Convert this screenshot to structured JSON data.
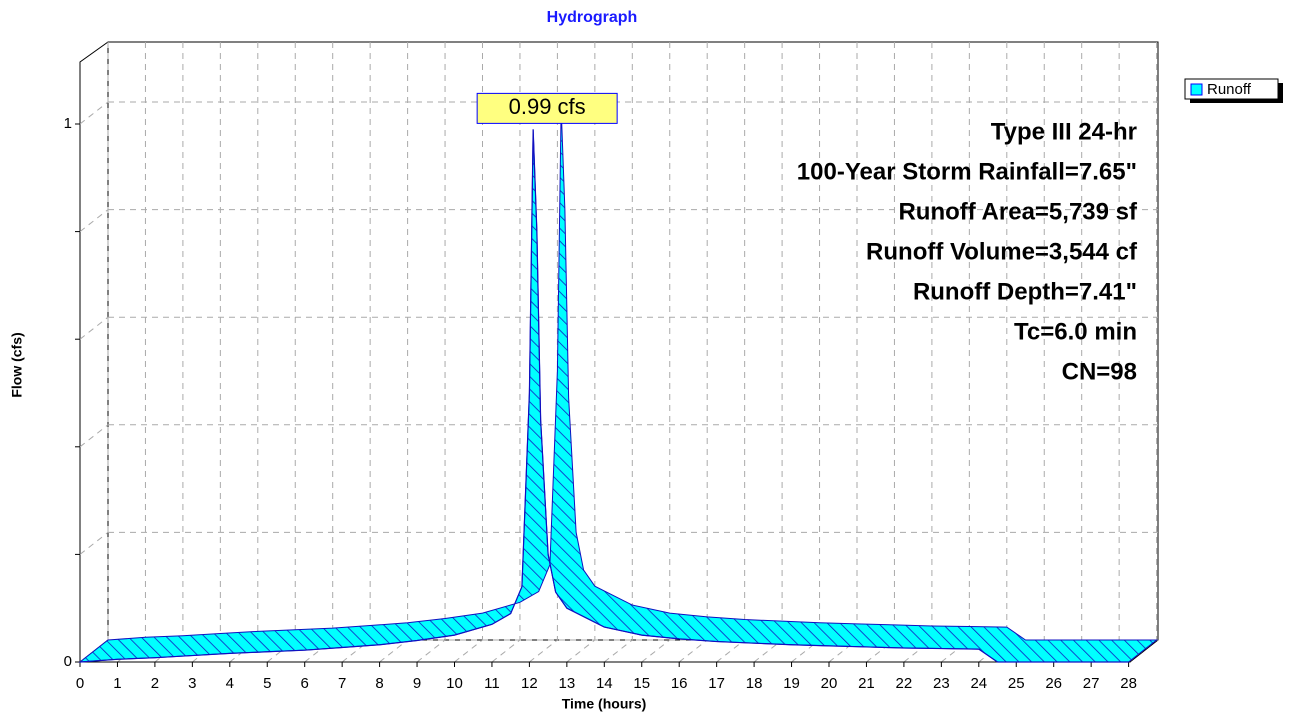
{
  "chart_data": {
    "type": "hydrograph",
    "title": "Hydrograph",
    "xlabel": "Time  (hours)",
    "ylabel": "Flow  (cfs)",
    "x": [
      0,
      1,
      2,
      3,
      4,
      5,
      6,
      7,
      8,
      9,
      10,
      11,
      11.5,
      11.8,
      12.0,
      12.1,
      12.2,
      12.3,
      12.5,
      12.7,
      13,
      14,
      15,
      16,
      17,
      18,
      19,
      20,
      21,
      22,
      23,
      24,
      24.5,
      25,
      26,
      27,
      28
    ],
    "series": [
      {
        "name": "Runoff",
        "color": "#00ffff",
        "values": [
          0,
          0.005,
          0.008,
          0.012,
          0.016,
          0.019,
          0.022,
          0.027,
          0.032,
          0.04,
          0.05,
          0.07,
          0.09,
          0.14,
          0.5,
          0.99,
          0.8,
          0.45,
          0.2,
          0.13,
          0.1,
          0.065,
          0.05,
          0.043,
          0.038,
          0.035,
          0.032,
          0.03,
          0.028,
          0.026,
          0.025,
          0.024,
          0,
          0,
          0,
          0,
          0
        ]
      }
    ],
    "peak": {
      "x": 12.1,
      "value": 0.99,
      "label": "0.99 cfs"
    },
    "xlim": [
      0,
      28
    ],
    "xticks": [
      0,
      1,
      2,
      3,
      4,
      5,
      6,
      7,
      8,
      9,
      10,
      11,
      12,
      13,
      14,
      15,
      16,
      17,
      18,
      19,
      20,
      21,
      22,
      23,
      24,
      25,
      26,
      27,
      28
    ],
    "ylim": [
      0,
      1
    ],
    "yticks": [
      0,
      1
    ],
    "yminor": [
      0.2,
      0.4,
      0.6,
      0.8
    ],
    "grid": true,
    "annotations": [
      "Type III 24-hr",
      "100-Year Storm Rainfall=7.65\"",
      "Runoff Area=5,739 sf",
      "Runoff Volume=3,544 cf",
      "Runoff Depth=7.41\"",
      "Tc=6.0 min",
      "CN=98"
    ]
  }
}
